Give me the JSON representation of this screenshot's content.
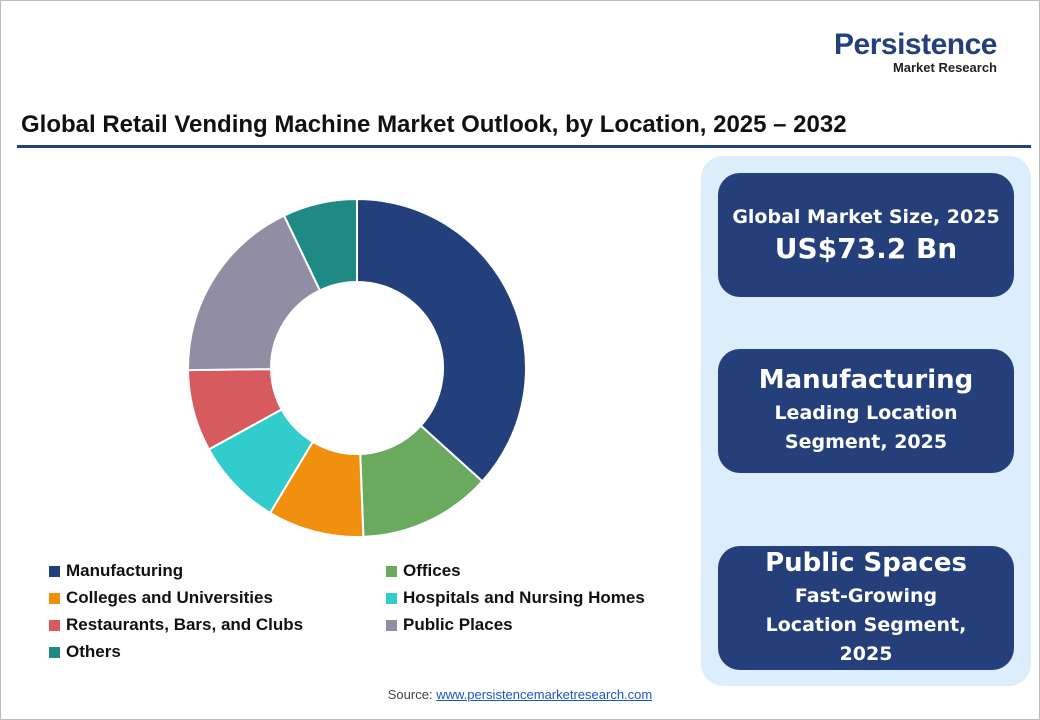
{
  "logo": {
    "name": "Persistence",
    "tagline": "Market Research"
  },
  "chart_data": {
    "type": "donut",
    "title": "Global Retail Vending Machine Market Outlook, by Location, 2025 – 2032",
    "categories": [
      "Manufacturing",
      "Offices",
      "Colleges and Universities",
      "Hospitals and Nursing Homes",
      "Restaurants, Bars, and Clubs",
      "Public Places",
      "Others"
    ],
    "values": [
      36.7,
      12.7,
      9.2,
      8.4,
      7.8,
      18.1,
      7.1
    ],
    "colors": [
      "#24407c",
      "#6aaa5f",
      "#f0900e",
      "#33cccc",
      "#d65a5e",
      "#918ea3",
      "#1f8a84"
    ],
    "legend": "bottom"
  },
  "cards": [
    {
      "title": "Global Market Size, 2025",
      "value": "US$73.2 Bn"
    },
    {
      "title": "Manufacturing",
      "subtitle": "Leading Location Segment, 2025"
    },
    {
      "title": "Public Spaces",
      "subtitle": "Fast-Growing Location Segment, 2025"
    }
  ],
  "source": {
    "label": "Source:",
    "link": "www.persistencemarketresearch.com"
  }
}
